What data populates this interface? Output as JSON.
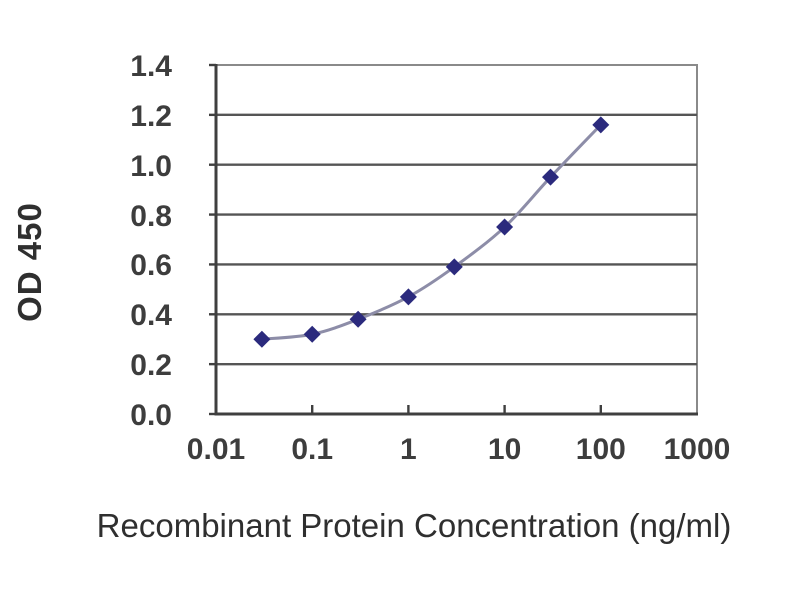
{
  "figure": {
    "background": "#ffffff",
    "kind": "ELISA standard curve"
  },
  "chart_data": {
    "type": "line",
    "title": "",
    "xlabel": "Recombinant Protein Concentration (ng/ml)",
    "ylabel": "OD 450",
    "x_scale": "log",
    "xlim": [
      0.01,
      1000
    ],
    "ylim": [
      0.0,
      1.4
    ],
    "x_ticks": [
      0.01,
      0.1,
      1,
      10,
      100,
      1000
    ],
    "x_tick_labels": [
      "0.01",
      "0.1",
      "1",
      "10",
      "100",
      "1000"
    ],
    "y_ticks": [
      0.0,
      0.2,
      0.4,
      0.6,
      0.8,
      1.0,
      1.2,
      1.4
    ],
    "y_tick_labels": [
      "0.0",
      "0.2",
      "0.4",
      "0.6",
      "0.8",
      "1.0",
      "1.2",
      "1.4"
    ],
    "grid": "horizontal",
    "legend": "none",
    "colors": {
      "marker": "#2b2a7d",
      "line": "#8d8da8",
      "gridline": "#555555",
      "axis": "#3f3f3f",
      "box_border": "#8a8a8a",
      "tick_text": "#3d3d3d",
      "title_text": "#2f2f2f"
    },
    "series": [
      {
        "name": "OD 450",
        "marker": "diamond",
        "points": [
          {
            "x": 0.03,
            "y": 0.3
          },
          {
            "x": 0.1,
            "y": 0.32
          },
          {
            "x": 0.3,
            "y": 0.38
          },
          {
            "x": 1,
            "y": 0.47
          },
          {
            "x": 3,
            "y": 0.59
          },
          {
            "x": 10,
            "y": 0.75
          },
          {
            "x": 30,
            "y": 0.95
          },
          {
            "x": 100,
            "y": 1.16
          }
        ]
      }
    ]
  }
}
